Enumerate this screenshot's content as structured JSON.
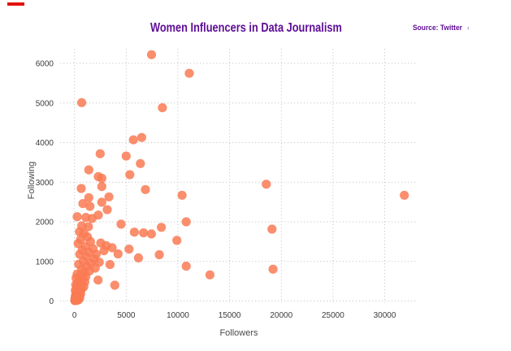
{
  "header": {
    "title": "Women Influencers in Data Journalism",
    "title_color": "#5e0d96",
    "source_label": "Source: Twitter",
    "source_trailing_mark": "‹",
    "source_color": "#5e0d96"
  },
  "decoration": {
    "corner_mark_color": "#e3120b"
  },
  "chart_data": {
    "type": "scatter",
    "title": "Women Influencers in Data Journalism",
    "xlabel": "Followers",
    "ylabel": "Following",
    "x_ticks": [
      0,
      5000,
      10000,
      15000,
      20000,
      25000,
      30000
    ],
    "y_ticks": [
      0,
      1000,
      2000,
      3000,
      4000,
      5000,
      6000
    ],
    "xlim": [
      -1400,
      33500
    ],
    "ylim": [
      -300,
      6500
    ],
    "grid": "dotted, both axes",
    "legend": "none",
    "gridline_color": "#cbcbcb",
    "tick_label_color": "#3b3b3b",
    "marker_color": "#f97a54",
    "marker_opacity": 0.85,
    "marker_radius_px": 5.6,
    "points": [
      [
        7450,
        6220
      ],
      [
        11100,
        5750
      ],
      [
        700,
        5010
      ],
      [
        8500,
        4880
      ],
      [
        6500,
        4130
      ],
      [
        5700,
        4070
      ],
      [
        2480,
        3720
      ],
      [
        5000,
        3660
      ],
      [
        6370,
        3470
      ],
      [
        1380,
        3310
      ],
      [
        5350,
        3190
      ],
      [
        2300,
        3140
      ],
      [
        2650,
        3100
      ],
      [
        18550,
        2950
      ],
      [
        31900,
        2670
      ],
      [
        10400,
        2670
      ],
      [
        2640,
        2890
      ],
      [
        650,
        2840
      ],
      [
        6860,
        2815
      ],
      [
        1380,
        2610
      ],
      [
        3330,
        2630
      ],
      [
        810,
        2460
      ],
      [
        2640,
        2495
      ],
      [
        1490,
        2390
      ],
      [
        3170,
        2305
      ],
      [
        260,
        2130
      ],
      [
        1100,
        2110
      ],
      [
        2300,
        2170
      ],
      [
        1700,
        2085
      ],
      [
        4500,
        1940
      ],
      [
        700,
        1900
      ],
      [
        1340,
        1875
      ],
      [
        5790,
        1740
      ],
      [
        6680,
        1720
      ],
      [
        7440,
        1695
      ],
      [
        8400,
        1860
      ],
      [
        10800,
        2000
      ],
      [
        19100,
        1815
      ],
      [
        9900,
        1530
      ],
      [
        8200,
        1170
      ],
      [
        10800,
        880
      ],
      [
        13100,
        660
      ],
      [
        19200,
        805
      ],
      [
        5270,
        1310
      ],
      [
        6180,
        1090
      ],
      [
        4210,
        1190
      ],
      [
        3430,
        920
      ],
      [
        2280,
        530
      ],
      [
        3900,
        400
      ],
      [
        2540,
        1465
      ],
      [
        3070,
        1400
      ],
      [
        3640,
        1345
      ],
      [
        2850,
        1270
      ],
      [
        2400,
        980
      ],
      [
        2100,
        1180
      ],
      [
        480,
        1750
      ],
      [
        900,
        1700
      ],
      [
        1250,
        1620
      ],
      [
        600,
        1560
      ],
      [
        1550,
        1500
      ],
      [
        350,
        1450
      ],
      [
        1050,
        1380
      ],
      [
        1800,
        1320
      ],
      [
        750,
        1280
      ],
      [
        1400,
        1230
      ],
      [
        500,
        1180
      ],
      [
        1150,
        1120
      ],
      [
        1900,
        1060
      ],
      [
        850,
        1010
      ],
      [
        1600,
        960
      ],
      [
        400,
        930
      ],
      [
        1200,
        880
      ],
      [
        2000,
        830
      ],
      [
        700,
        800
      ],
      [
        1450,
        760
      ],
      [
        950,
        720
      ],
      [
        250,
        680
      ],
      [
        600,
        650
      ],
      [
        1100,
        620
      ],
      [
        150,
        580
      ],
      [
        800,
        560
      ],
      [
        450,
        520
      ],
      [
        1000,
        480
      ],
      [
        300,
        460
      ],
      [
        650,
        430
      ],
      [
        120,
        410
      ],
      [
        500,
        390
      ],
      [
        900,
        360
      ],
      [
        200,
        340
      ],
      [
        700,
        310
      ],
      [
        380,
        290
      ],
      [
        80,
        270
      ],
      [
        550,
        250
      ],
      [
        250,
        230
      ],
      [
        420,
        210
      ],
      [
        130,
        190
      ],
      [
        600,
        180
      ],
      [
        300,
        160
      ],
      [
        90,
        140
      ],
      [
        450,
        130
      ],
      [
        200,
        110
      ],
      [
        350,
        95
      ],
      [
        60,
        80
      ],
      [
        500,
        70
      ],
      [
        150,
        60
      ],
      [
        280,
        50
      ],
      [
        40,
        40
      ],
      [
        380,
        30
      ],
      [
        100,
        25
      ],
      [
        220,
        15
      ],
      [
        30,
        10
      ],
      [
        170,
        35
      ],
      [
        90,
        55
      ],
      [
        320,
        65
      ],
      [
        60,
        20
      ],
      [
        140,
        75
      ]
    ]
  }
}
